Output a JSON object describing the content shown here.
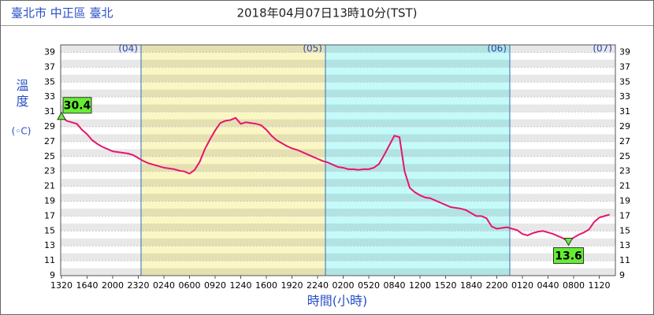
{
  "chart_data": {
    "type": "line",
    "location": "臺北市 中正區 臺北",
    "title": "2018年04月07日13時10分(TST)",
    "y_label": "溫度",
    "y_unit": "(◦C)",
    "x_label": "時間(小時)",
    "days": [
      "(04)",
      "(05)",
      "(06)",
      "(07)"
    ],
    "day_colors": [
      "#ffffff",
      "#fbf7c4",
      "#c4fafa",
      "#ffffff"
    ],
    "categories": [
      "1320",
      null,
      null,
      null,
      null,
      "1640",
      null,
      null,
      null,
      null,
      "2000",
      null,
      null,
      null,
      null,
      "2320",
      null,
      null,
      null,
      null,
      "0240",
      null,
      null,
      null,
      null,
      "0600",
      null,
      null,
      null,
      null,
      "0920",
      null,
      null,
      null,
      null,
      "1240",
      null,
      null,
      null,
      null,
      "1600",
      null,
      null,
      null,
      null,
      "1920",
      null,
      null,
      null,
      null,
      "2240",
      null,
      null,
      null,
      null,
      "0200",
      null,
      null,
      null,
      null,
      "0520",
      null,
      null,
      null,
      null,
      "0840",
      null,
      null,
      null,
      null,
      "1200",
      null,
      null,
      null,
      null,
      "1520",
      null,
      null,
      null,
      null,
      "1840",
      null,
      null,
      null,
      null,
      "2200",
      null,
      null,
      null,
      null,
      "0120",
      null,
      null,
      null,
      null,
      "0440",
      null,
      null,
      null,
      null,
      "0800",
      null,
      null,
      null,
      null,
      "1120",
      null,
      null
    ],
    "values": [
      30.4,
      29.8,
      29.6,
      29.4,
      28.6,
      28,
      27.2,
      26.7,
      26.3,
      26,
      25.7,
      25.6,
      25.5,
      25.4,
      25.2,
      24.8,
      24.4,
      24.1,
      23.9,
      23.7,
      23.5,
      23.4,
      23.3,
      23.1,
      23,
      22.7,
      23.2,
      24.3,
      26,
      27.3,
      28.5,
      29.5,
      29.8,
      29.9,
      30.2,
      29.4,
      29.6,
      29.5,
      29.4,
      29.2,
      28.6,
      27.8,
      27.2,
      26.8,
      26.4,
      26.1,
      25.9,
      25.6,
      25.3,
      25,
      24.7,
      24.4,
      24.2,
      23.9,
      23.6,
      23.5,
      23.3,
      23.3,
      23.2,
      23.3,
      23.3,
      23.5,
      24,
      25.2,
      26.5,
      27.8,
      27.6,
      23,
      20.8,
      20.2,
      19.8,
      19.5,
      19.4,
      19.1,
      18.8,
      18.5,
      18.2,
      18.1,
      18,
      17.8,
      17.4,
      17,
      17,
      16.7,
      15.6,
      15.3,
      15.4,
      15.5,
      15.3,
      15.1,
      14.6,
      14.4,
      14.7,
      14.9,
      15,
      14.8,
      14.6,
      14.3,
      14,
      13.6,
      14.1,
      14.5,
      14.8,
      15.2,
      16.2,
      16.8,
      17,
      17.2
    ],
    "color": "#e8146e",
    "max_label": 30.4,
    "min_label": 13.6,
    "marker_color": "#66ee33",
    "ylim": [
      9,
      40
    ],
    "yticks": [
      9,
      11,
      13,
      15,
      17,
      19,
      21,
      23,
      25,
      27,
      29,
      31,
      33,
      35,
      37,
      39
    ],
    "grid": true
  }
}
